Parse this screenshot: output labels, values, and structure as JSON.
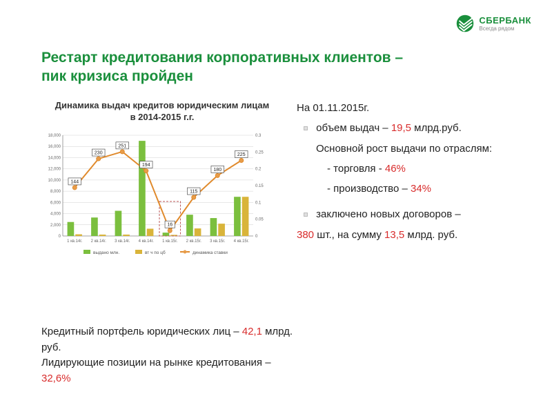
{
  "logo": {
    "name": "СБЕРБАНК",
    "tagline": "Всегда рядом",
    "color": "#1a8f3c"
  },
  "title_line1": "Рестарт кредитования корпоративных клиентов –",
  "title_line2": "пик кризиса пройден",
  "chart_title_line1": "Динамика выдач кредитов юридическим лицам",
  "chart_title_line2": "в 2014-2015 г.г.",
  "chart": {
    "type": "bar+line",
    "categories": [
      "1 кв.14г.",
      "2 кв.14г.",
      "3 кв.14г.",
      "4 кв.14г.",
      "1 кв.15г.",
      "2 кв.15г.",
      "3 кв.15г.",
      "4 кв.15г."
    ],
    "bars_green": [
      2500,
      3300,
      4500,
      17000,
      600,
      3800,
      3200,
      7000
    ],
    "bars_yellow": [
      300,
      250,
      250,
      1300,
      200,
      1350,
      2200,
      7000
    ],
    "line_values": [
      0.144,
      0.23,
      0.251,
      0.194,
      0.016,
      0.115,
      0.18,
      0.225
    ],
    "point_labels": [
      "144",
      "230",
      "251",
      "194",
      "16",
      "115",
      "180",
      "225"
    ],
    "y_left_max": 18000,
    "y_left_ticks": [
      "0",
      "2,000",
      "4,000",
      "6,000",
      "8,000",
      "10,000",
      "12,000",
      "14,000",
      "16,000",
      "18,000"
    ],
    "y_right_max": 0.3,
    "y_right_ticks": [
      "0",
      "0.05",
      "0.1",
      "0.15",
      "0.2",
      "0.25",
      "0.3"
    ],
    "legend": {
      "green": "выдано млн.",
      "yellow": "вт ч по цб",
      "line": "динамика ставки"
    },
    "colors": {
      "bar_green": "#7bbf3e",
      "bar_yellow": "#d9b43a",
      "line": "#e08a2c",
      "line_fill": "#e89d4a",
      "grid": "#d0d0d0",
      "axis": "#888",
      "label_bg": "#ffffff",
      "label_border": "#333",
      "dashed": "#b55",
      "tick_text": "#666"
    }
  },
  "right": {
    "date": "На 01.11.2015г.",
    "volume_pre": "объем выдач – ",
    "volume_val": "19,5",
    "volume_post": " млрд.руб.",
    "growth_intro": "Основной рост выдачи по отраслям:",
    "trade_pre": "- торговля  - ",
    "trade_val": "46%",
    "prod_pre": "- производство – ",
    "prod_val": "34%",
    "contracts_pre": "заключено новых договоров –",
    "contracts_count": "380",
    "contracts_mid1": " шт., на сумму ",
    "contracts_sum": "13,5",
    "contracts_post": " млрд. руб."
  },
  "bottom": {
    "line1_pre": "Кредитный портфель юридических лиц – ",
    "line1_val": "42,1",
    "line1_post": " млрд.",
    "line1_post2": "руб.",
    "line2_pre": "Лидирующие позиции на рынке кредитования – ",
    "line2_val": "32,6%"
  }
}
